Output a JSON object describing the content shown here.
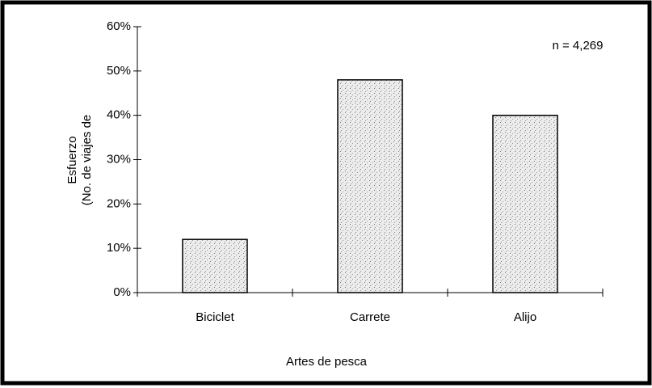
{
  "chart_data": {
    "type": "bar",
    "ylabel": [
      "Esfuerzo",
      "(No. de viajes de"
    ],
    "xlabel": "Artes de pesca",
    "annotation": "n = 4,269",
    "categories": [
      "Biciclet",
      "Carrete",
      "Alijo"
    ],
    "values": [
      12,
      48,
      40
    ],
    "color": "#e4e4e4",
    "ylim": [
      0,
      60
    ],
    "yticks": [
      {
        "value": 0,
        "label": "0%"
      },
      {
        "value": 10,
        "label": "10%"
      },
      {
        "value": 20,
        "label": "20%"
      },
      {
        "value": 30,
        "label": "30%"
      },
      {
        "value": 40,
        "label": "40%"
      },
      {
        "value": 50,
        "label": "50%"
      },
      {
        "value": 60,
        "label": "60%"
      }
    ],
    "grid": false
  }
}
